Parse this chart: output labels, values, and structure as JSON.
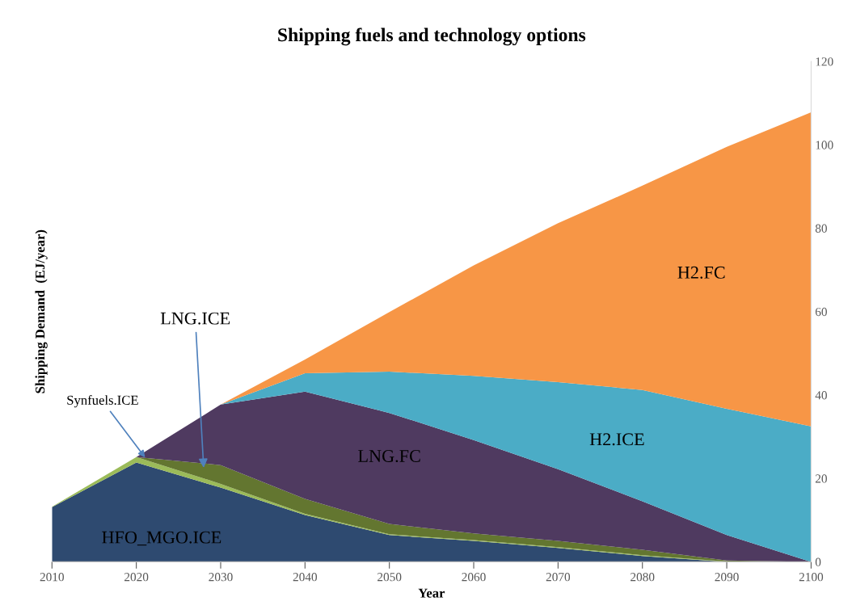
{
  "chart_data": {
    "type": "area",
    "stacked": true,
    "title": "Shipping fuels and technology options",
    "xlabel": "Year",
    "ylabel": "Shipping Demand  (EJ/year)",
    "x": [
      2010,
      2020,
      2030,
      2040,
      2050,
      2060,
      2070,
      2080,
      2090,
      2100
    ],
    "series": [
      {
        "name": "HFO_MGO.ICE",
        "color": "#2e4a70",
        "values": [
          13.1,
          23.8,
          17.8,
          11.2,
          6.4,
          5.0,
          3.3,
          1.4,
          0,
          0
        ]
      },
      {
        "name": "Synfuels.ICE",
        "color": "#9bbb59",
        "values": [
          0.1,
          1.3,
          0.9,
          0.3,
          0.2,
          0.2,
          0.2,
          0.2,
          0.1,
          0
        ]
      },
      {
        "name": "LNG.ICE",
        "color": "#637630",
        "values": [
          null,
          0,
          4.5,
          3.6,
          2.5,
          1.6,
          1.5,
          1.3,
          0.2,
          0
        ]
      },
      {
        "name": "LNG.FC",
        "color": "#4f3a60",
        "values": [
          0,
          0,
          14.5,
          25.7,
          26.6,
          22.4,
          17.2,
          11.6,
          6.1,
          0
        ]
      },
      {
        "name": "H2.ICE",
        "color": "#4bacc6",
        "values": [
          0,
          0,
          0,
          4.4,
          9.9,
          15.4,
          20.9,
          26.7,
          30.3,
          32.5
        ]
      },
      {
        "name": "H2.FC",
        "color": "#f79646",
        "values": [
          0,
          0,
          0,
          3.3,
          14.3,
          26.5,
          38.1,
          49.0,
          62.8,
          75.3
        ]
      }
    ],
    "xlim": [
      2010,
      2100
    ],
    "xticks": [
      2010,
      2020,
      2030,
      2040,
      2050,
      2060,
      2070,
      2080,
      2090,
      2100
    ],
    "ylim": [
      0,
      120
    ],
    "yticks": [
      0,
      20,
      40,
      60,
      80,
      100,
      120
    ],
    "grid": false,
    "legend": false
  }
}
